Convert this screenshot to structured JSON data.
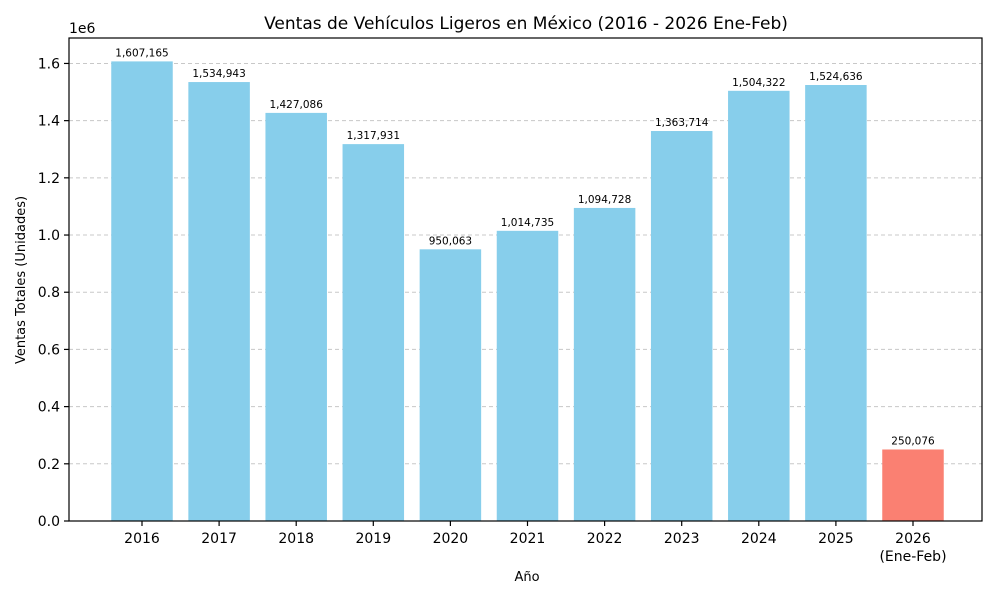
{
  "chart_data": {
    "type": "bar",
    "title": "Ventas de Vehículos Ligeros en México (2016 - 2026 Ene-Feb)",
    "xlabel": "Año",
    "ylabel": "Ventas Totales (Unidades)",
    "y_offset_label": "1e6",
    "y_scale": 1000000,
    "ylim": [
      0,
      1689000
    ],
    "yticks": [
      0,
      200000,
      400000,
      600000,
      800000,
      1000000,
      1200000,
      1400000,
      1600000
    ],
    "ytick_labels": [
      "0.0",
      "0.2",
      "0.4",
      "0.6",
      "0.8",
      "1.0",
      "1.2",
      "1.4",
      "1.6"
    ],
    "grid": "y-dashed",
    "categories": [
      "2016",
      "2017",
      "2018",
      "2019",
      "2020",
      "2021",
      "2022",
      "2023",
      "2024",
      "2025",
      "2026\n(Ene-Feb)"
    ],
    "values": [
      1607165,
      1534943,
      1427086,
      1317931,
      950063,
      1014735,
      1094728,
      1363714,
      1504322,
      1524636,
      250076
    ],
    "value_labels": [
      "1,607,165",
      "1,534,943",
      "1,427,086",
      "1,317,931",
      "950,063",
      "1,014,735",
      "1,094,728",
      "1,363,714",
      "1,504,322",
      "1,524,636",
      "250,076"
    ],
    "colors": [
      "#87CEEB",
      "#87CEEB",
      "#87CEEB",
      "#87CEEB",
      "#87CEEB",
      "#87CEEB",
      "#87CEEB",
      "#87CEEB",
      "#87CEEB",
      "#87CEEB",
      "#FA8072"
    ]
  }
}
